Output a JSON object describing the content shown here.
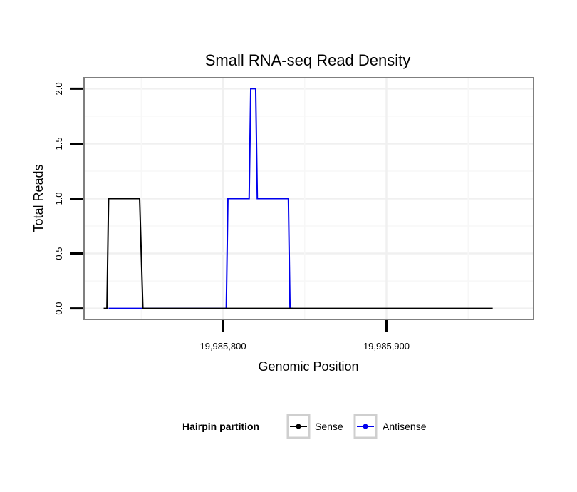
{
  "chart_data": {
    "type": "line",
    "title": "Small RNA-seq Read Density",
    "xlabel": "Genomic Position",
    "ylabel": "Total Reads",
    "xlim": [
      19985715,
      19985990
    ],
    "ylim": [
      -0.1,
      2.1
    ],
    "x_ticks": [
      19985800,
      19985900
    ],
    "x_tick_labels": [
      "19,985,800",
      "19,985,900"
    ],
    "y_ticks": [
      0.0,
      0.5,
      1.0,
      1.5,
      2.0
    ],
    "y_tick_labels": [
      "0.0",
      "0.5",
      "1.0",
      "1.5",
      "2.0"
    ],
    "grid": true,
    "legend": {
      "title": "Hairpin partition",
      "position": "bottom"
    },
    "series": [
      {
        "name": "Sense",
        "color": "#000000",
        "points": [
          [
            19985727,
            0
          ],
          [
            19985729,
            0
          ],
          [
            19985730,
            1
          ],
          [
            19985749,
            1
          ],
          [
            19985751,
            0
          ],
          [
            19985965,
            0
          ]
        ]
      },
      {
        "name": "Antisense",
        "color": "#0000ee",
        "points": [
          [
            19985730,
            0
          ],
          [
            19985800,
            0
          ],
          [
            19985802,
            0
          ],
          [
            19985803,
            1
          ],
          [
            19985816,
            1
          ],
          [
            19985817,
            2
          ],
          [
            19985820,
            2
          ],
          [
            19985821,
            1
          ],
          [
            19985840,
            1
          ],
          [
            19985841,
            0
          ],
          [
            19985843,
            0
          ]
        ]
      }
    ]
  }
}
